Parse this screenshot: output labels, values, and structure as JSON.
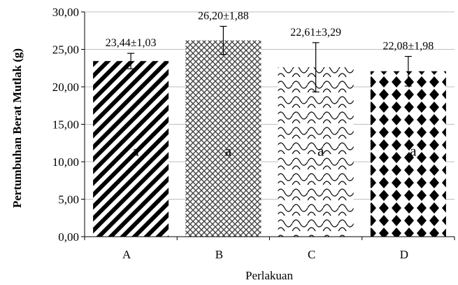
{
  "chart_data": {
    "type": "bar",
    "categories": [
      "A",
      "B",
      "C",
      "D"
    ],
    "values": [
      23.44,
      26.2,
      22.61,
      22.08
    ],
    "errors": [
      1.03,
      1.88,
      3.29,
      1.98
    ],
    "data_labels": [
      "23,44±1,03",
      "26,20±1,88",
      "22,61±3,29",
      "22,08±1,98"
    ],
    "significance_labels": [
      "a",
      "a",
      "a",
      "a"
    ],
    "fill_patterns": [
      "diagonal-stripes",
      "cross-hatch",
      "scales",
      "diamonds"
    ],
    "xlabel": "Perlakuan",
    "ylabel": "Pertumbuhan Berat Mutlak (g)",
    "ylim": [
      0,
      30
    ],
    "yticks": [
      "0,00",
      "5,00",
      "10,00",
      "15,00",
      "20,00",
      "25,00",
      "30,00"
    ],
    "grid": true,
    "legend": "none"
  }
}
